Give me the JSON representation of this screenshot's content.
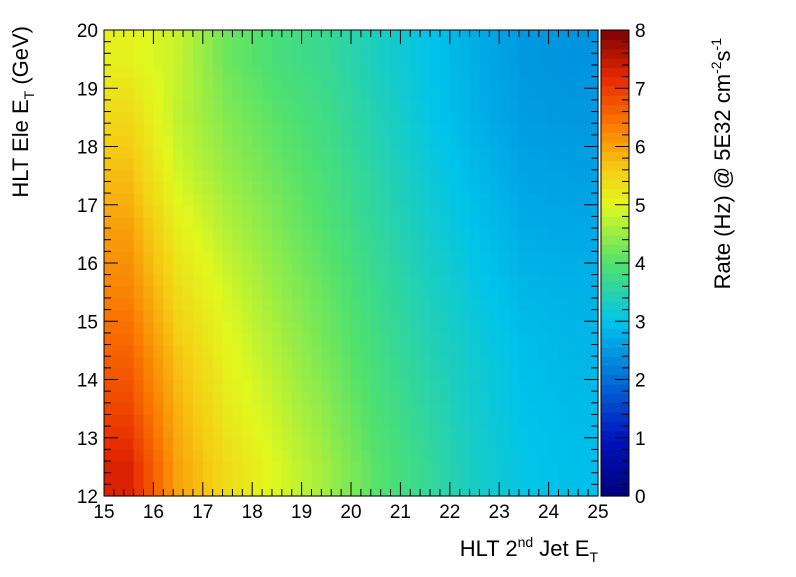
{
  "chart_data": {
    "type": "heatmap",
    "title": "",
    "xlabel": {
      "main": "HLT 2",
      "sup": "nd",
      "post": " Jet E",
      "sub": "T"
    },
    "ylabel": {
      "main": "HLT Ele E",
      "sub": "T",
      "post": " (GeV)"
    },
    "zlabel": {
      "main": "Rate (Hz) @ 5E32 cm",
      "sup1": "-2",
      "mid": "s",
      "sup2": "-1"
    },
    "xlim": [
      15,
      25
    ],
    "ylim": [
      12,
      20
    ],
    "zlim": [
      0,
      8
    ],
    "x_ticks": [
      15,
      16,
      17,
      18,
      19,
      20,
      21,
      22,
      23,
      24,
      25
    ],
    "y_ticks": [
      12,
      13,
      14,
      15,
      16,
      17,
      18,
      19,
      20
    ],
    "z_ticks": [
      0,
      1,
      2,
      3,
      4,
      5,
      6,
      7,
      8
    ],
    "colormap": "rainbow (dark blue → cyan → green → yellow → orange → red → dark red)",
    "grid": false,
    "x_bins": [
      15,
      16,
      17,
      18,
      19,
      20,
      21,
      22,
      23,
      24,
      25
    ],
    "y_bins": [
      12,
      13,
      14,
      15,
      16,
      17,
      18,
      19,
      20
    ],
    "values": [
      [
        7.3,
        6.0,
        5.4,
        4.95,
        4.55,
        4.05,
        3.7,
        3.3,
        3.05,
        2.95
      ],
      [
        6.9,
        5.85,
        5.2,
        4.8,
        4.4,
        3.95,
        3.6,
        3.25,
        3.0,
        2.9
      ],
      [
        6.6,
        5.65,
        5.05,
        4.65,
        4.25,
        3.85,
        3.5,
        3.2,
        2.95,
        2.85
      ],
      [
        6.3,
        5.4,
        4.9,
        4.5,
        4.15,
        3.75,
        3.4,
        3.1,
        2.85,
        2.8
      ],
      [
        6.05,
        5.15,
        4.7,
        4.35,
        4.0,
        3.65,
        3.3,
        3.0,
        2.75,
        2.7
      ],
      [
        5.75,
        4.9,
        4.5,
        4.2,
        3.9,
        3.55,
        3.2,
        2.9,
        2.65,
        2.6
      ],
      [
        5.45,
        4.75,
        4.35,
        4.05,
        3.8,
        3.45,
        3.1,
        2.8,
        2.55,
        2.5
      ],
      [
        5.1,
        4.8,
        4.2,
        3.9,
        3.7,
        3.35,
        3.05,
        2.75,
        2.5,
        2.45
      ]
    ]
  }
}
